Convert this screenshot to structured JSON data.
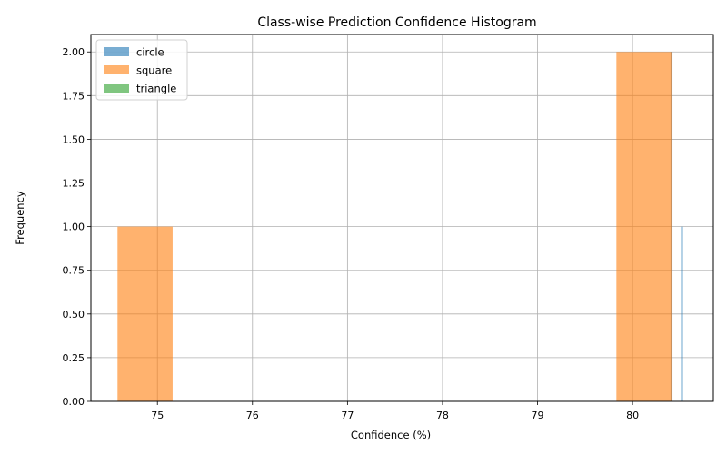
{
  "chart_data": {
    "type": "histogram",
    "title": "Class-wise Prediction Confidence Histogram",
    "xlabel": "Confidence (%)",
    "ylabel": "Frequency",
    "xlim": [
      74.3,
      80.85
    ],
    "ylim": [
      0,
      2.1
    ],
    "xticks": [
      75,
      76,
      77,
      78,
      79,
      80
    ],
    "yticks": [
      "0.00",
      "0.25",
      "0.50",
      "0.75",
      "1.00",
      "1.25",
      "1.50",
      "1.75",
      "2.00"
    ],
    "grid": true,
    "legend_position": "top-left",
    "series": [
      {
        "name": "circle",
        "color": "#1f77b4",
        "bins": [
          {
            "x0": 80.4,
            "x1": 80.42,
            "count": 2
          },
          {
            "x0": 80.51,
            "x1": 80.53,
            "count": 1
          }
        ]
      },
      {
        "name": "square",
        "color": "#ff7f0e",
        "bins": [
          {
            "x0": 74.58,
            "x1": 75.16,
            "count": 1
          },
          {
            "x0": 79.83,
            "x1": 80.41,
            "count": 2
          }
        ]
      },
      {
        "name": "triangle",
        "color": "#2ca02c",
        "bins": []
      }
    ]
  }
}
